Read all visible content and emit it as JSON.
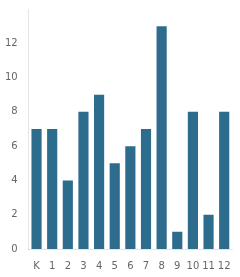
{
  "chart_data": {
    "type": "bar",
    "categories": [
      "K",
      "1",
      "2",
      "3",
      "4",
      "5",
      "6",
      "7",
      "8",
      "9",
      "10",
      "11",
      "12"
    ],
    "values": [
      7,
      7,
      4,
      8,
      9,
      5,
      6,
      7,
      13,
      1,
      8,
      2,
      8
    ],
    "color": "#2e6c8e",
    "ylim": [
      0,
      14
    ],
    "yticks": [
      0,
      2,
      4,
      6,
      8,
      10,
      12
    ],
    "grid": false
  }
}
